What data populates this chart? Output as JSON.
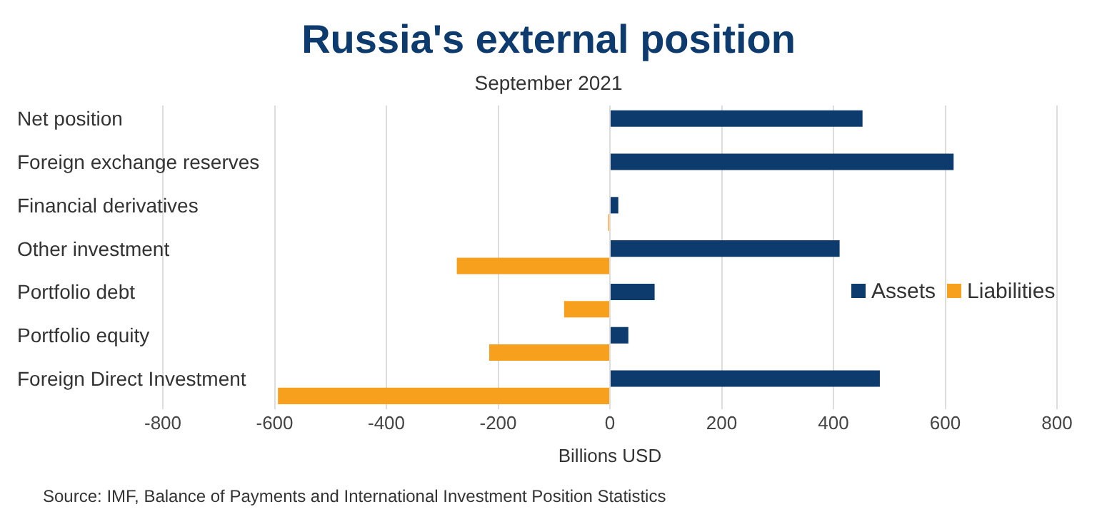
{
  "chart_data": {
    "type": "bar",
    "orientation": "horizontal",
    "title": "Russia's external position",
    "subtitle": "September 2021",
    "xlabel": "Billions USD",
    "categories": [
      "Net position",
      "Foreign exchange reserves",
      "Financial derivatives",
      "Other investment",
      "Portfolio debt",
      "Portfolio equity",
      "Foreign Direct Investment"
    ],
    "series": [
      {
        "name": "Assets",
        "color": "#0d3b6e",
        "values": [
          452,
          615,
          15,
          411,
          80,
          33,
          483
        ]
      },
      {
        "name": "Liabilities",
        "color": "#f7a01d",
        "values": [
          null,
          null,
          -3,
          -274,
          -82,
          -216,
          -594
        ]
      }
    ],
    "xlim": [
      -800,
      800
    ],
    "xticks": [
      -800,
      -600,
      -400,
      -200,
      0,
      200,
      400,
      600,
      800
    ],
    "grid": "x",
    "legend": "right",
    "annotations": [
      "Source: IMF, Balance of Payments and International Investment Position Statistics"
    ]
  }
}
